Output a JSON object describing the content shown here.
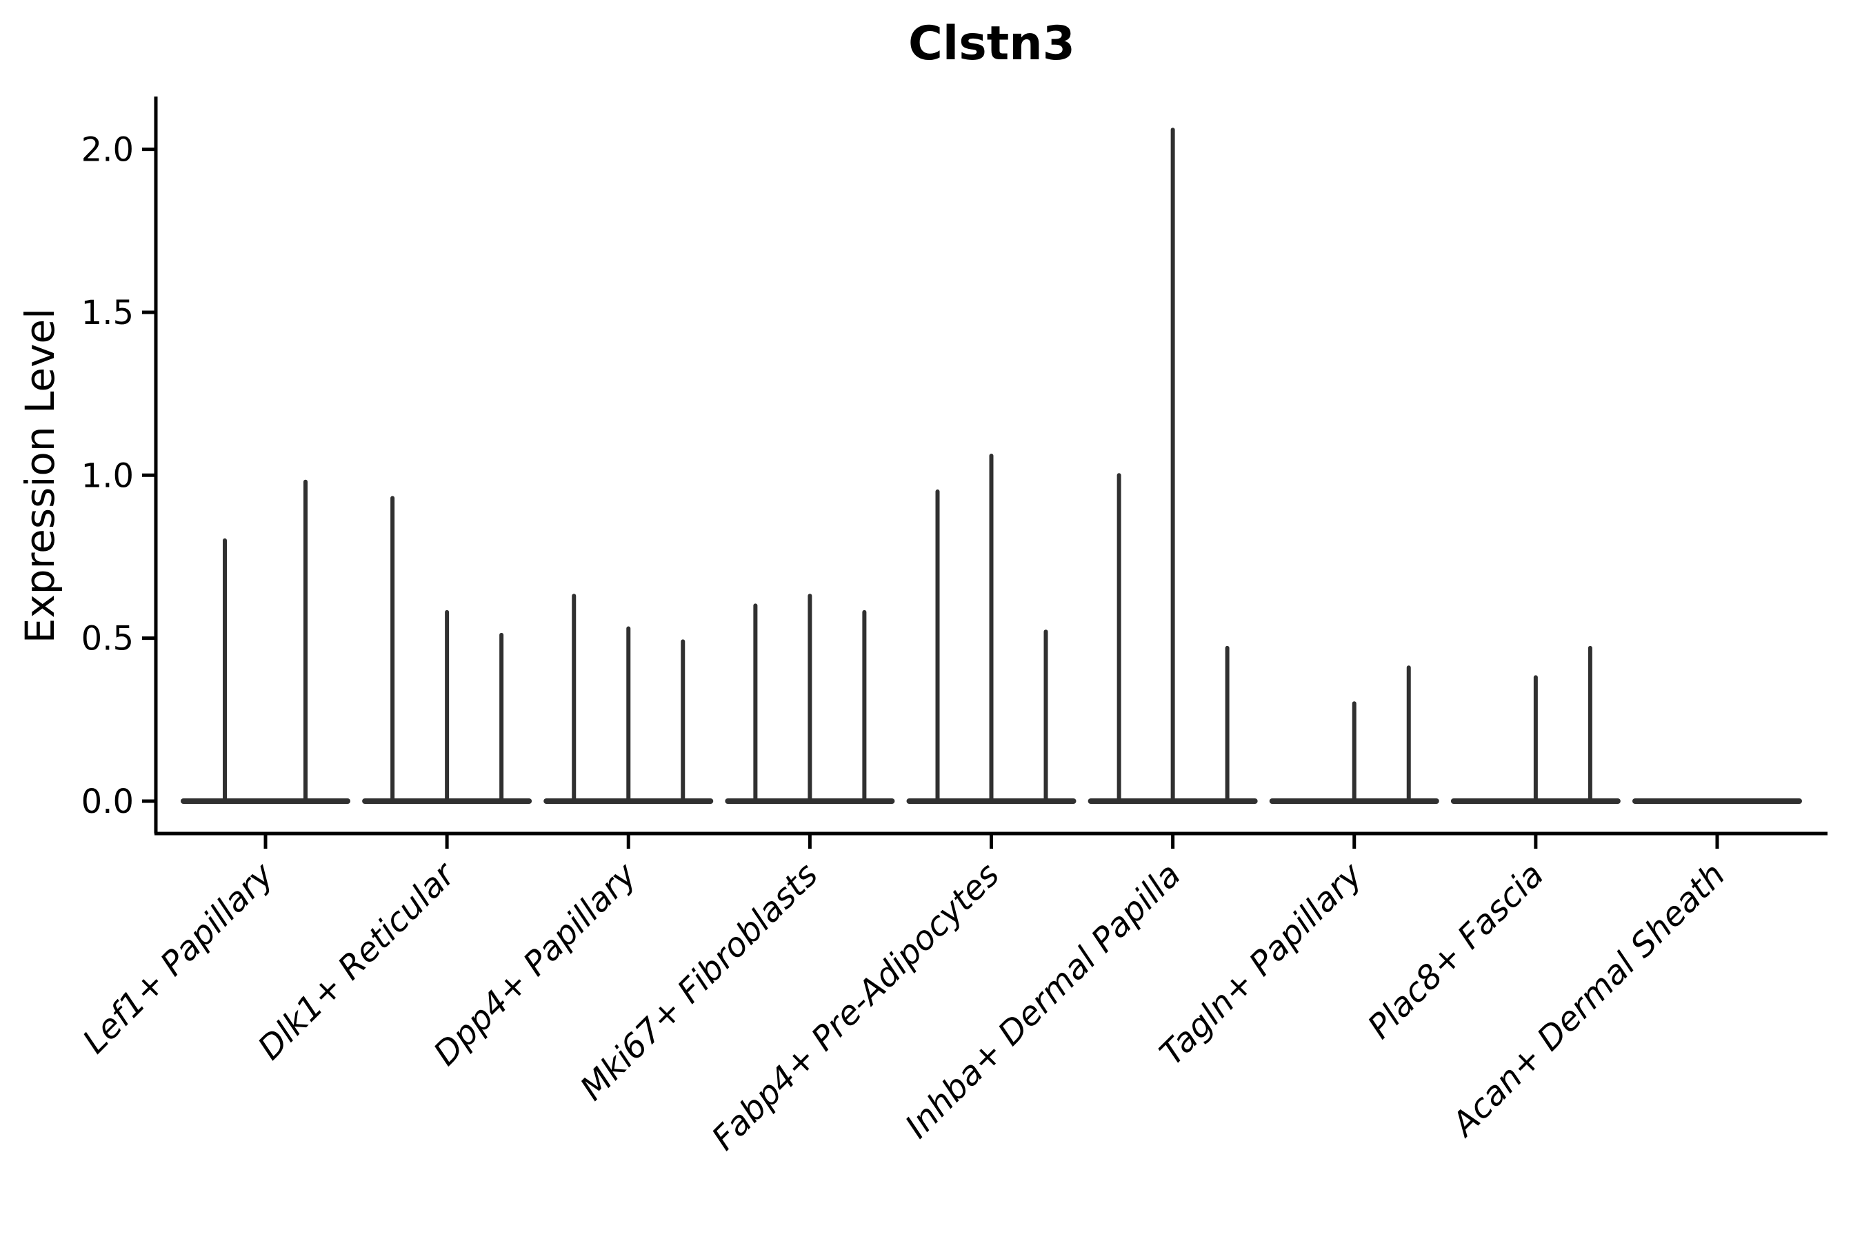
{
  "chart_data": {
    "type": "violin",
    "title": "Clstn3",
    "ylabel": "Expression Level",
    "xlabel": "",
    "ylim": [
      -0.1,
      2.16
    ],
    "yticks": [
      0.0,
      0.5,
      1.0,
      1.5,
      2.0
    ],
    "ytick_labels": [
      "0.0",
      "0.5",
      "1.0",
      "1.5",
      "2.0"
    ],
    "grid": "off",
    "legend": "none",
    "style_note": "collapsed thin violins: each category shows a flat baseline at 0 with narrow vertical density spikes; spike dx = pixel offset of sub-violin from category center, max = spike top expression value",
    "categories": [
      "Lef1+ Papillary",
      "Dlk1+ Reticular",
      "Dpp4+ Papillary",
      "Mki67+ Fibroblasts",
      "Fabp4+ Pre-Adipocytes",
      "Inhba+ Dermal Papilla",
      "Tagln+ Papillary",
      "Plac8+ Fascia",
      "Acan+ Dermal Sheath"
    ],
    "groups": [
      {
        "label": "Lef1+ Papillary",
        "baseline": 0.0,
        "spikes": [
          {
            "dx": -59,
            "max": 0.8
          },
          {
            "dx": 58,
            "max": 0.98
          }
        ]
      },
      {
        "label": "Dlk1+ Reticular",
        "baseline": 0.0,
        "spikes": [
          {
            "dx": -79,
            "max": 0.93
          },
          {
            "dx": 0,
            "max": 0.58
          },
          {
            "dx": 79,
            "max": 0.51
          }
        ]
      },
      {
        "label": "Dpp4+ Papillary",
        "baseline": 0.0,
        "spikes": [
          {
            "dx": -79,
            "max": 0.63
          },
          {
            "dx": 0,
            "max": 0.53
          },
          {
            "dx": 79,
            "max": 0.49
          }
        ]
      },
      {
        "label": "Mki67+ Fibroblasts",
        "baseline": 0.0,
        "spikes": [
          {
            "dx": -79,
            "max": 0.6
          },
          {
            "dx": 0,
            "max": 0.63
          },
          {
            "dx": 79,
            "max": 0.58
          }
        ]
      },
      {
        "label": "Fabp4+ Pre-Adipocytes",
        "baseline": 0.0,
        "spikes": [
          {
            "dx": -78,
            "max": 0.95
          },
          {
            "dx": 0,
            "max": 1.06
          },
          {
            "dx": 79,
            "max": 0.52
          }
        ]
      },
      {
        "label": "Inhba+ Dermal Papilla",
        "baseline": 0.0,
        "spikes": [
          {
            "dx": -78,
            "max": 1.0
          },
          {
            "dx": 0,
            "max": 2.06
          },
          {
            "dx": 79,
            "max": 0.47
          }
        ]
      },
      {
        "label": "Tagln+ Papillary",
        "baseline": 0.0,
        "spikes": [
          {
            "dx": 0,
            "max": 0.3
          },
          {
            "dx": 79,
            "max": 0.41
          }
        ]
      },
      {
        "label": "Plac8+ Fascia",
        "baseline": 0.0,
        "spikes": [
          {
            "dx": 0,
            "max": 0.38
          },
          {
            "dx": 79,
            "max": 0.47
          }
        ]
      },
      {
        "label": "Acan+ Dermal Sheath",
        "baseline": 0.0,
        "spikes": []
      }
    ],
    "colors": {
      "violin_line": "#303030",
      "axis": "#000000",
      "text": "#000000",
      "background": "#ffffff"
    }
  }
}
